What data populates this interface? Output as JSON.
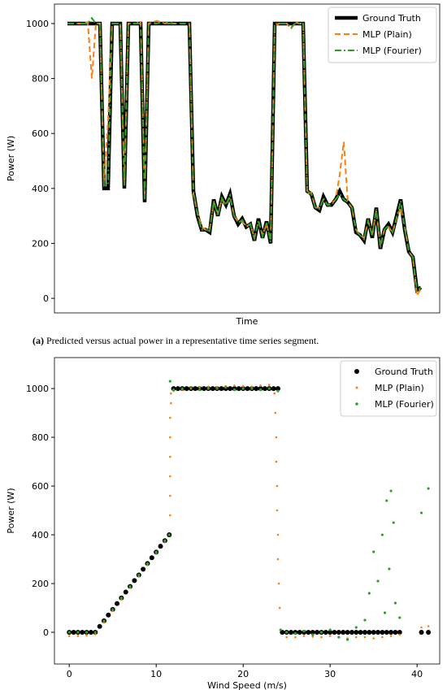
{
  "chart_data": [
    {
      "type": "line",
      "xlabel": "Time",
      "ylabel": "Power (W)",
      "ylim": [
        -53,
        1071
      ],
      "yticks": [
        0,
        200,
        400,
        600,
        800,
        1000
      ],
      "legend": "upper right",
      "series": [
        {
          "name": "Ground Truth",
          "color": "#000000",
          "style": "solid",
          "values": [
            1000,
            1000,
            1000,
            1000,
            1000,
            1000,
            1000,
            1000,
            1000,
            400,
            400,
            1000,
            1000,
            1000,
            400,
            1000,
            1000,
            1000,
            1000,
            350,
            1000,
            1000,
            1000,
            1000,
            1000,
            1000,
            1000,
            1000,
            1000,
            1000,
            1000,
            390,
            300,
            250,
            250,
            240,
            360,
            300,
            370,
            340,
            380,
            300,
            270,
            290,
            260,
            270,
            210,
            290,
            220,
            280,
            200,
            1000,
            1000,
            1000,
            1000,
            1000,
            1000,
            1000,
            1000,
            390,
            380,
            330,
            320,
            370,
            340,
            340,
            360,
            390,
            360,
            350,
            330,
            240,
            230,
            210,
            290,
            220,
            330,
            180,
            250,
            270,
            240,
            300,
            360,
            250,
            170,
            150,
            30,
            40
          ]
        },
        {
          "name": "MLP (Plain)",
          "color": "#ff7f0e",
          "style": "dashed",
          "values": [
            1000,
            1000,
            1000,
            1000,
            1000,
            1005,
            800,
            1000,
            1000,
            420,
            650,
            1000,
            1000,
            1000,
            420,
            1000,
            1000,
            1000,
            1010,
            380,
            1000,
            1005,
            1010,
            1005,
            1000,
            1005,
            1000,
            1000,
            1000,
            1000,
            1000,
            380,
            310,
            260,
            250,
            250,
            350,
            310,
            360,
            340,
            370,
            300,
            280,
            280,
            260,
            270,
            220,
            280,
            230,
            270,
            210,
            990,
            1000,
            1000,
            1000,
            980,
            1005,
            1000,
            1000,
            380,
            385,
            330,
            330,
            360,
            340,
            345,
            360,
            450,
            570,
            350,
            330,
            250,
            230,
            220,
            280,
            230,
            320,
            190,
            250,
            260,
            240,
            290,
            330,
            260,
            170,
            150,
            10,
            35
          ]
        },
        {
          "name": "MLP (Fourier)",
          "color": "#2ca02c",
          "style": "dashdot",
          "values": [
            1000,
            1000,
            1000,
            1000,
            1000,
            1000,
            1020,
            1000,
            1000,
            410,
            420,
            1000,
            1000,
            1000,
            410,
            1000,
            1000,
            1000,
            1000,
            360,
            1000,
            1000,
            1000,
            1005,
            1000,
            1000,
            1000,
            1000,
            1000,
            1000,
            1000,
            390,
            305,
            250,
            250,
            245,
            355,
            300,
            365,
            340,
            375,
            300,
            275,
            285,
            265,
            270,
            215,
            285,
            225,
            275,
            205,
            1000,
            1000,
            1000,
            1000,
            985,
            1000,
            1000,
            1000,
            390,
            380,
            330,
            325,
            365,
            340,
            340,
            360,
            380,
            360,
            350,
            330,
            245,
            230,
            215,
            285,
            225,
            325,
            185,
            250,
            265,
            240,
            295,
            355,
            255,
            170,
            150,
            25,
            40
          ]
        }
      ]
    },
    {
      "type": "scatter",
      "xlabel": "Wind Speed (m/s)",
      "ylabel": "Power (W)",
      "xlim": [
        -1.7,
        42.6
      ],
      "xticks": [
        0,
        10,
        20,
        30,
        40
      ],
      "ylim": [
        -130,
        1127
      ],
      "yticks": [
        0,
        200,
        400,
        600,
        800,
        1000
      ],
      "legend": "upper right",
      "series": [
        {
          "name": "Ground Truth",
          "color": "#000000",
          "x": [
            0,
            0.5,
            1,
            1.5,
            2,
            2.5,
            3,
            3.5,
            4,
            4.5,
            5,
            5.5,
            6,
            6.5,
            7,
            7.5,
            8,
            8.5,
            9,
            9.5,
            10,
            10.5,
            11,
            11.5,
            12,
            12.5,
            13,
            13.5,
            14,
            14.5,
            15,
            15.5,
            16,
            16.5,
            17,
            17.5,
            18,
            18.5,
            19,
            19.5,
            20,
            20.5,
            21,
            21.5,
            22,
            22.5,
            23,
            23.5,
            24,
            24.5,
            25,
            25.5,
            26,
            26.5,
            27,
            27.5,
            28,
            28.5,
            29,
            29.5,
            30,
            30.5,
            31,
            31.5,
            32,
            32.5,
            33,
            33.5,
            34,
            34.5,
            35,
            35.5,
            36,
            36.5,
            37,
            37.5,
            38,
            40.5,
            41.3
          ],
          "values": [
            0,
            0,
            0,
            0,
            0,
            0,
            0,
            24,
            47,
            71,
            94,
            118,
            141,
            165,
            188,
            212,
            235,
            259,
            282,
            306,
            329,
            353,
            376,
            400,
            1000,
            1000,
            1000,
            1000,
            1000,
            1000,
            1000,
            1000,
            1000,
            1000,
            1000,
            1000,
            1000,
            1000,
            1000,
            1000,
            1000,
            1000,
            1000,
            1000,
            1000,
            1000,
            1000,
            1000,
            1000,
            0,
            0,
            0,
            0,
            0,
            0,
            0,
            0,
            0,
            0,
            0,
            0,
            0,
            0,
            0,
            0,
            0,
            0,
            0,
            0,
            0,
            0,
            0,
            0,
            0,
            0,
            0,
            0,
            0,
            0
          ]
        },
        {
          "name": "MLP (Plain)",
          "color": "#ff7f0e",
          "x": [
            0,
            1,
            2,
            3,
            4,
            5,
            6,
            7,
            8,
            9,
            10,
            11,
            11.5,
            11.6,
            11.6,
            11.6,
            11.6,
            11.6,
            11.6,
            11.7,
            11.7,
            12,
            13,
            14,
            15,
            16,
            17,
            18,
            19,
            20,
            21,
            22,
            23,
            23.6,
            23.7,
            23.8,
            23.8,
            23.9,
            23.9,
            24,
            24,
            24.1,
            24.2,
            25,
            26,
            27,
            28,
            29,
            30,
            31,
            32,
            33,
            34,
            35,
            36,
            37,
            38,
            40.5,
            41.3
          ],
          "values": [
            -15,
            -15,
            -12,
            -8,
            40,
            88,
            135,
            182,
            230,
            277,
            325,
            372,
            400,
            480,
            560,
            640,
            720,
            800,
            880,
            940,
            980,
            990,
            995,
            1000,
            1005,
            1008,
            1005,
            1010,
            1012,
            1010,
            1008,
            1012,
            1015,
            980,
            900,
            800,
            700,
            600,
            500,
            400,
            300,
            200,
            100,
            -20,
            -20,
            -15,
            -18,
            -20,
            -15,
            -20,
            -25,
            -20,
            -20,
            -25,
            -20,
            -15,
            -10,
            20,
            25
          ]
        },
        {
          "name": "MLP (Fourier)",
          "color": "#2ca02c",
          "x": [
            0,
            1,
            2,
            3,
            4,
            5,
            6,
            7,
            8,
            9,
            10,
            11,
            11.5,
            11.6,
            12,
            13,
            14,
            15,
            16,
            17,
            18,
            19,
            20,
            21,
            22,
            23,
            24,
            24.3,
            25,
            26,
            27,
            28,
            29,
            30,
            31,
            32,
            33,
            34,
            34.5,
            35,
            35.5,
            36,
            36.3,
            36.5,
            36.8,
            37,
            37.3,
            37.5,
            38,
            40.5,
            41.3
          ],
          "values": [
            0,
            0,
            0,
            0,
            47,
            94,
            141,
            188,
            235,
            282,
            329,
            376,
            400,
            1030,
            995,
            1000,
            1005,
            995,
            1000,
            1000,
            1005,
            995,
            1000,
            1000,
            995,
            1000,
            990,
            10,
            0,
            -5,
            5,
            -10,
            0,
            10,
            -20,
            -30,
            20,
            50,
            160,
            330,
            210,
            400,
            80,
            540,
            260,
            580,
            450,
            120,
            60,
            490,
            590
          ]
        }
      ]
    }
  ],
  "caption": {
    "label": "(a)",
    "text": "Predicted versus actual power in a representative time series segment."
  }
}
